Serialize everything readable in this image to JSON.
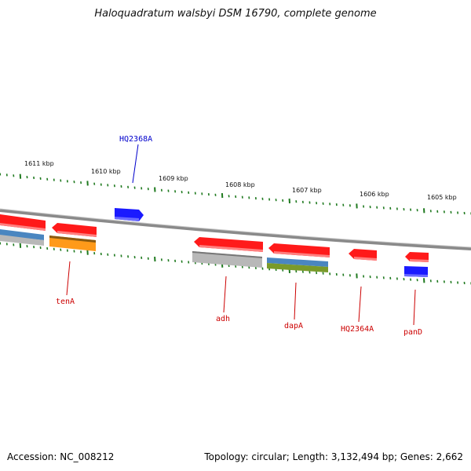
{
  "title": "Haloquadratum walsbyi DSM 16790, complete genome",
  "footer": {
    "accession": "Accession: NC_008212",
    "topology": "Topology: circular; Length: 3,132,494 bp; Genes: 2,662"
  },
  "colors": {
    "backbone": "#8a8a8a",
    "ticks": "#1f7a1f",
    "gene_red": "#ff1a1a",
    "gene_blue": "#1a1aff",
    "orange": "#ff9a1a",
    "gray": "#b8b8b8",
    "steelblue": "#4a86c0",
    "olive": "#7a9a2a",
    "label_red": "#cc0000",
    "label_blue": "#0000cc"
  },
  "kbp_labels": [
    "1611 kbp",
    "1610 kbp",
    "1609 kbp",
    "1608 kbp",
    "1607 kbp",
    "1606 kbp",
    "1605 kbp"
  ],
  "gene_labels": [
    {
      "text": "HQ2368A",
      "color": "blue"
    },
    {
      "text": "tenA",
      "color": "red"
    },
    {
      "text": "adh",
      "color": "red"
    },
    {
      "text": "dapA",
      "color": "red"
    },
    {
      "text": "HQ2364A",
      "color": "red"
    },
    {
      "text": "panD",
      "color": "red"
    }
  ]
}
